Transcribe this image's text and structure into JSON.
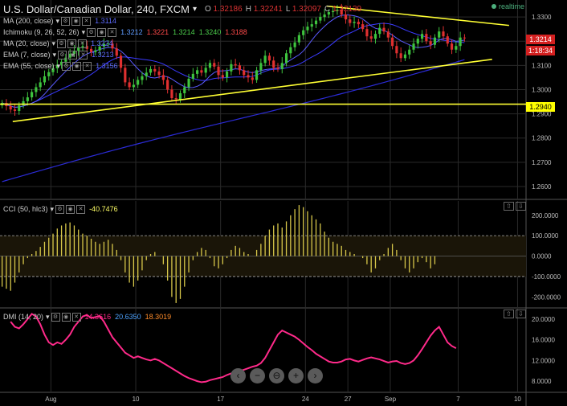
{
  "header": {
    "title": "U.S. Dollar/Canadian Dollar, 240, FXCM",
    "title_arrow": "▾",
    "ohlc": [
      {
        "label": "O",
        "value": "1.32186"
      },
      {
        "label": "H",
        "value": "1.32241"
      },
      {
        "label": "L",
        "value": "1.32097"
      },
      {
        "label": "C",
        "value": "1.32139"
      }
    ],
    "realtime_label": "realtime"
  },
  "indicators": [
    {
      "name": "MA (200, close)",
      "values": [
        {
          "text": "1.3114",
          "color": "#5e6cff"
        }
      ]
    },
    {
      "name": "Ichimoku (9, 26, 52, 26)",
      "values": [
        {
          "text": "1.3212",
          "color": "#5e9bff"
        },
        {
          "text": "1.3221",
          "color": "#ff4a4a"
        },
        {
          "text": "1.3214",
          "color": "#4ccf4c"
        },
        {
          "text": "1.3240",
          "color": "#4ccf4c"
        },
        {
          "text": "1.3188",
          "color": "#ff4a4a"
        }
      ]
    },
    {
      "name": "MA (20, close)",
      "values": [
        {
          "text": "1.3224",
          "color": "#5e6cff"
        }
      ]
    },
    {
      "name": "EMA (7, close)",
      "values": [
        {
          "text": "1.3213",
          "color": "#5e6cff"
        }
      ]
    },
    {
      "name": "EMA (55, close)",
      "values": [
        {
          "text": "1.3156",
          "color": "#5e6cff"
        }
      ]
    }
  ],
  "price_badges": [
    {
      "text": "1.3214",
      "bg": "#d42020",
      "fg": "#ffffff"
    },
    {
      "text": "1:18:34",
      "bg": "#d42020",
      "fg": "#ffffff"
    },
    {
      "text": "1.2940",
      "bg": "#ffff00",
      "fg": "#000000"
    }
  ],
  "cci": {
    "label": "CCI (50, hlc3)",
    "value": "-40.7476",
    "value_color": "#ffff66"
  },
  "dmi": {
    "label": "DMI (14, 20)",
    "values": [
      {
        "text": "14.3616",
        "color": "#ff2a8a"
      },
      {
        "text": "20.6350",
        "color": "#4ea3ff"
      },
      {
        "text": "18.3019",
        "color": "#ff8c2a"
      }
    ]
  },
  "nav_buttons": [
    "‹",
    "−",
    "⊖",
    "+",
    "›"
  ],
  "colors": {
    "up": "#3ec43e",
    "down": "#e03030",
    "trendline": "#ffff33",
    "ma": "#3a3aff",
    "cci_bar": "#d8c84a",
    "dmi_line": "#ff2a8a",
    "grid": "#2a2a2a"
  },
  "chart_data": [
    {
      "type": "candlestick",
      "title": "U.S. Dollar/Canadian Dollar, 240, FXCM",
      "x_tick_labels": [
        "Aug",
        "10",
        "17",
        "24",
        "27",
        "Sep",
        "7",
        "10"
      ],
      "x_tick_index": [
        12,
        32,
        52,
        72,
        82,
        92,
        108,
        122
      ],
      "y_ticks": [
        1.26,
        1.27,
        1.28,
        1.29,
        1.3,
        1.31,
        1.32,
        1.33
      ],
      "y_tick_labels": [
        "1.2600",
        "1.2700",
        "1.2800",
        "1.2900",
        "1.3000",
        "1.3100",
        "1.3200",
        "1.3300"
      ],
      "ylim": [
        1.255,
        1.337
      ],
      "xlim": [
        0,
        124
      ],
      "closes": [
        1.2945,
        1.2932,
        1.2918,
        1.2912,
        1.2935,
        1.2952,
        1.2968,
        1.299,
        1.301,
        1.303,
        1.3055,
        1.3072,
        1.3088,
        1.3102,
        1.3115,
        1.3132,
        1.3148,
        1.316,
        1.3175,
        1.318,
        1.3168,
        1.3155,
        1.3162,
        1.3178,
        1.3188,
        1.319,
        1.317,
        1.314,
        1.309,
        1.303,
        1.301,
        1.302,
        1.304,
        1.3055,
        1.307,
        1.3085,
        1.3075,
        1.306,
        1.304,
        1.3,
        1.2965,
        1.296,
        1.2985,
        1.301,
        1.3045,
        1.3065,
        1.308,
        1.307,
        1.309,
        1.311,
        1.3095,
        1.306,
        1.305,
        1.3075,
        1.3105,
        1.31,
        1.308,
        1.306,
        1.305,
        1.304,
        1.308,
        1.311,
        1.314,
        1.312,
        1.309,
        1.3085,
        1.311,
        1.315,
        1.3175,
        1.3195,
        1.3225,
        1.3245,
        1.326,
        1.327,
        1.3285,
        1.33,
        1.331,
        1.332,
        1.3325,
        1.333,
        1.331,
        1.329,
        1.3275,
        1.328,
        1.327,
        1.325,
        1.322,
        1.321,
        1.323,
        1.3255,
        1.324,
        1.3215,
        1.318,
        1.315,
        1.313,
        1.3145,
        1.3165,
        1.319,
        1.321,
        1.323,
        1.32,
        1.3185,
        1.3215,
        1.324,
        1.322,
        1.319,
        1.3165,
        1.318,
        1.3215,
        1.3214
      ],
      "trendlines": [
        {
          "from": [
            3,
            1.2868
          ],
          "to": [
            116,
            1.3125
          ]
        },
        {
          "from": [
            77,
            1.3345
          ],
          "to": [
            120,
            1.3265
          ]
        },
        {
          "from": [
            0,
            1.294
          ],
          "to": [
            124,
            1.294
          ]
        }
      ]
    },
    {
      "type": "bar",
      "name": "CCI (50, hlc3)",
      "y_ticks": [
        -200,
        -100,
        0,
        100,
        200
      ],
      "y_tick_labels": [
        "-200.0000",
        "-100.0000",
        "0.0000",
        "100.0000",
        "200.0000"
      ],
      "ylim": [
        -250,
        270
      ],
      "bands": [
        -100,
        100
      ],
      "values": [
        -150,
        -160,
        -170,
        -130,
        -80,
        -40,
        -10,
        10,
        25,
        45,
        70,
        90,
        110,
        135,
        150,
        160,
        165,
        150,
        130,
        110,
        100,
        85,
        70,
        60,
        70,
        80,
        60,
        30,
        -20,
        -80,
        -130,
        -150,
        -120,
        -70,
        -20,
        10,
        20,
        0,
        -40,
        -120,
        -200,
        -230,
        -210,
        -150,
        -80,
        -20,
        20,
        40,
        30,
        -10,
        -50,
        -60,
        -40,
        -10,
        30,
        50,
        40,
        20,
        10,
        0,
        30,
        60,
        100,
        130,
        150,
        160,
        140,
        170,
        200,
        230,
        250,
        240,
        220,
        200,
        180,
        160,
        120,
        90,
        70,
        60,
        50,
        30,
        20,
        10,
        0,
        -10,
        -40,
        -80,
        -60,
        -20,
        10,
        40,
        60,
        30,
        -20,
        -60,
        -80,
        -60,
        -30,
        -10,
        -30,
        -60,
        -40
      ],
      "x_start_index": 0
    },
    {
      "type": "line",
      "name": "DMI (14, 20)",
      "y_ticks": [
        8,
        12,
        16,
        20
      ],
      "y_tick_labels": [
        "8.0000",
        "12.0000",
        "16.0000",
        "20.0000"
      ],
      "ylim": [
        6,
        22
      ],
      "values": [
        19.5,
        18.5,
        18.2,
        19.0,
        20.0,
        21.0,
        20.5,
        19.0,
        17.0,
        15.5,
        15.0,
        15.5,
        15.2,
        16.0,
        17.0,
        18.5,
        19.5,
        20.5,
        20.8,
        20.2,
        20.4,
        20.6,
        19.5,
        18.0,
        16.5,
        15.5,
        14.5,
        13.5,
        13.0,
        12.5,
        12.8,
        12.5,
        12.2,
        12.0,
        12.3,
        12.0,
        11.5,
        11.0,
        10.5,
        10.0,
        9.5,
        9.0,
        8.6,
        8.3,
        8.0,
        7.8,
        7.9,
        8.2,
        8.4,
        8.6,
        8.8,
        9.2,
        9.5,
        9.7,
        10.0,
        10.2,
        10.5,
        10.8,
        11.0,
        11.5,
        12.5,
        14.0,
        15.5,
        17.0,
        17.8,
        17.4,
        17.0,
        16.6,
        16.0,
        15.3,
        14.6,
        14.0,
        13.3,
        12.8,
        12.3,
        11.8,
        11.6,
        11.6,
        11.8,
        12.2,
        12.3,
        12.0,
        11.8,
        12.1,
        12.4,
        12.6,
        12.4,
        12.2,
        11.9,
        11.6,
        11.8,
        11.9,
        11.5,
        11.3,
        11.5,
        12.0,
        13.0,
        14.2,
        15.5,
        16.8,
        17.8,
        18.5,
        17.0,
        15.5,
        14.8,
        14.3616
      ],
      "x_start_index": 2
    }
  ]
}
